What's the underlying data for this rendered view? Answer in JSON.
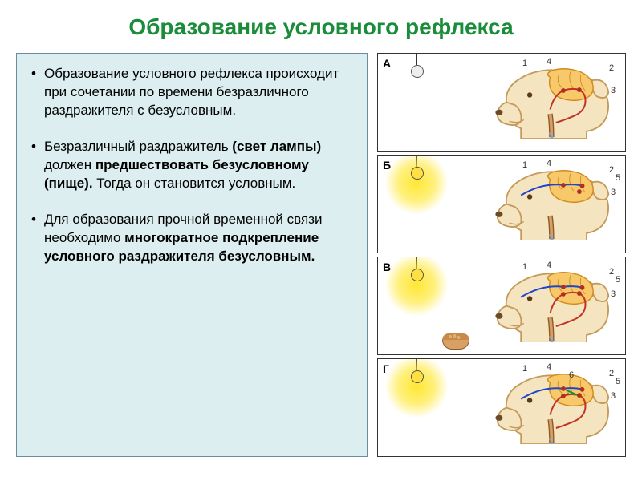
{
  "title": "Образование условного рефлекса",
  "title_color": "#1a8c3a",
  "title_fontsize": 28,
  "panel_bg": "#dceef0",
  "panel_border": "#6b8ca0",
  "body_fontsize": 17,
  "bullet_gap": 22,
  "bullets": [
    {
      "html": "Образование условного рефлекса происходит при сочетании по времени безразличного раздражителя с безусловным."
    },
    {
      "html": "Безразличный раздражитель <b>(свет лампы)</b> должен <b>предшествовать безусловному (пище).</b> Тогда он становится условным."
    },
    {
      "html": "Для образования прочной временной связи необходимо <b>многократное подкрепление условного раздражителя безусловным.</b>"
    }
  ],
  "rows": [
    {
      "label": "А",
      "bulb_on": false,
      "glow": false,
      "food": false,
      "red_path": true,
      "blue_path": false,
      "green_paths": false,
      "numbers": [
        "1",
        "2",
        "3",
        "4"
      ]
    },
    {
      "label": "Б",
      "bulb_on": true,
      "glow": true,
      "food": false,
      "red_path": false,
      "blue_path": true,
      "green_paths": false,
      "numbers": [
        "1",
        "2",
        "3",
        "4",
        "5"
      ]
    },
    {
      "label": "В",
      "bulb_on": true,
      "glow": true,
      "food": true,
      "red_path": true,
      "blue_path": true,
      "green_paths": false,
      "numbers": [
        "1",
        "2",
        "3",
        "4",
        "5"
      ]
    },
    {
      "label": "Г",
      "bulb_on": true,
      "glow": true,
      "food": false,
      "red_path": true,
      "blue_path": true,
      "green_paths": true,
      "numbers": [
        "1",
        "2",
        "3",
        "4",
        "5",
        "6"
      ]
    }
  ],
  "colors": {
    "dog_outline": "#c49a5a",
    "dog_fill": "#f4e4c0",
    "brain_outline": "#d38b1e",
    "brain_fill": "#f7c96b",
    "brain_lobe_fill": "#f9d98a",
    "node_fill": "#b03020",
    "red_path": "#c03224",
    "blue_path": "#2046c8",
    "green_path": "#1a8c3a",
    "saliva": "#6aa9e8",
    "tube_fill": "#d9a066",
    "tube_outline": "#8b5a2b"
  }
}
